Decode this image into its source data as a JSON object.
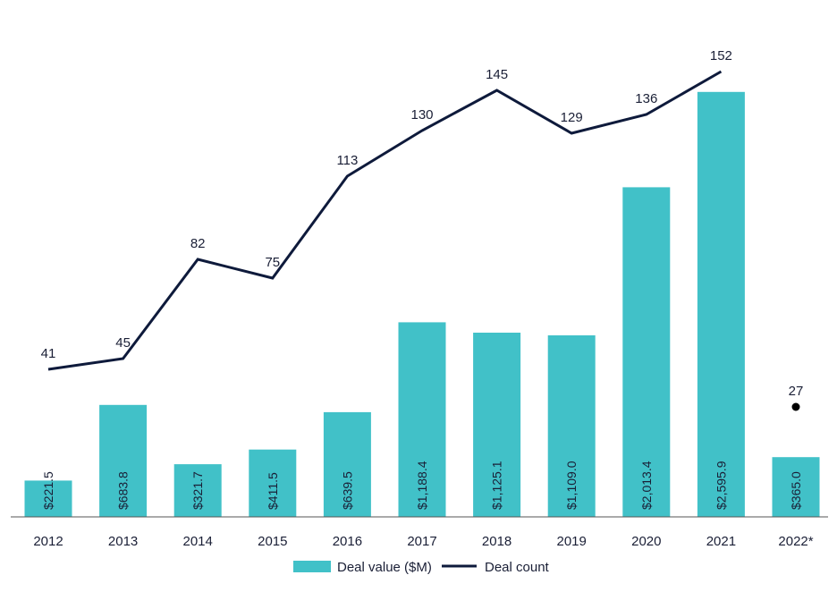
{
  "colors": {
    "bar": "#41c1c8",
    "line": "#0e1a3b",
    "text": "#1a1f36",
    "axis": "#555555"
  },
  "chart_data": {
    "type": "bar",
    "title": "",
    "xlabel": "",
    "ylabel": "",
    "categories": [
      "2012",
      "2013",
      "2014",
      "2015",
      "2016",
      "2017",
      "2018",
      "2019",
      "2020",
      "2021",
      "2022*"
    ],
    "series": [
      {
        "name": "Deal value ($M)",
        "type": "bar",
        "values": [
          221.5,
          683.8,
          321.7,
          411.5,
          639.5,
          1188.4,
          1125.1,
          1109.0,
          2013.4,
          2595.9,
          365.0
        ],
        "labels": [
          "$221.5",
          "$683.8",
          "$321.7",
          "$411.5",
          "$639.5",
          "$1,188.4",
          "$1,125.1",
          "$1,109.0",
          "$2,013.4",
          "$2,595.9",
          "$365.0"
        ]
      },
      {
        "name": "Deal count",
        "type": "line",
        "values": [
          41,
          45,
          82,
          75,
          113,
          130,
          145,
          129,
          136,
          152,
          27
        ],
        "labels": [
          "41",
          "45",
          "82",
          "75",
          "113",
          "130",
          "145",
          "129",
          "136",
          "152",
          "27"
        ],
        "line_through_last": false
      }
    ],
    "bar_axis_range": [
      0,
      2600
    ],
    "line_axis_range": [
      0,
      155
    ],
    "grid": false,
    "legend_position": "bottom-center"
  }
}
